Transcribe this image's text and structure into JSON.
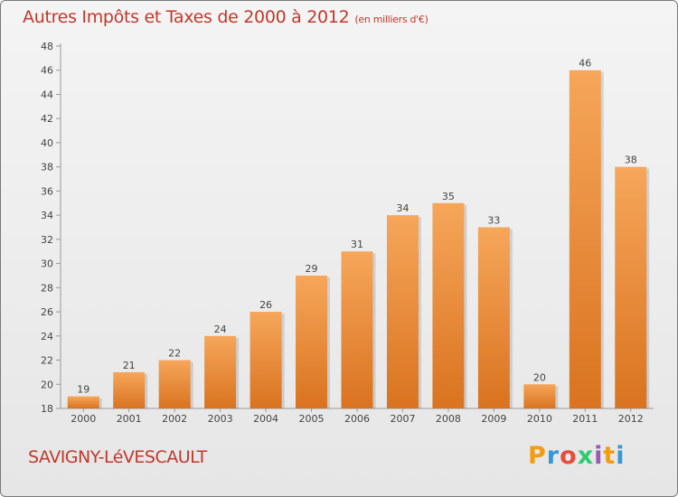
{
  "header": {
    "title": "Autres Impôts et Taxes de 2000 à 2012",
    "unit": "(en milliers d'€)"
  },
  "footer": {
    "commune": "SAVIGNY-LéVESCAULT",
    "brand": {
      "letters": [
        "P",
        "r",
        "o",
        "x",
        "i",
        "t",
        "i"
      ],
      "colors": [
        "#f39c12",
        "#3498db",
        "#e74c3c",
        "#2ecc71",
        "#9b59b6",
        "#f39c12",
        "#3498db"
      ]
    }
  },
  "chart_data": {
    "type": "bar",
    "title": "Autres Impôts et Taxes de 2000 à 2012",
    "categories": [
      "2000",
      "2001",
      "2002",
      "2003",
      "2004",
      "2005",
      "2006",
      "2007",
      "2008",
      "2009",
      "2010",
      "2011",
      "2012"
    ],
    "values": [
      19,
      21,
      22,
      24,
      26,
      29,
      31,
      34,
      35,
      33,
      20,
      46,
      38
    ],
    "ylim": [
      18,
      48
    ],
    "yticks": [
      18,
      20,
      22,
      24,
      26,
      28,
      30,
      32,
      34,
      36,
      38,
      40,
      42,
      44,
      46,
      48
    ],
    "grid": false,
    "bar_color_top": "#f6a65a",
    "bar_color_bottom": "#d9731f"
  }
}
